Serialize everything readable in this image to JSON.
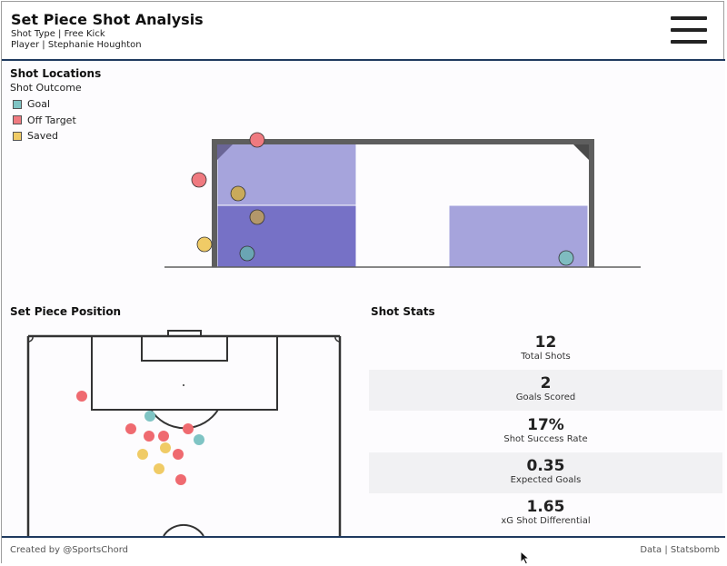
{
  "header": {
    "title": "Set Piece Shot Analysis",
    "shot_type_line": "Shot Type | Free Kick",
    "player_line": "Player | Stephanie Houghton",
    "menu_icon": "hamburger-menu-icon"
  },
  "shot_locations": {
    "title": "Shot Locations",
    "legend_title": "Shot Outcome",
    "legend": [
      {
        "label": "Goal",
        "color": "#7fc4c4"
      },
      {
        "label": "Off Target",
        "color": "#ef7a80"
      },
      {
        "label": "Saved",
        "color": "#f0cb66"
      }
    ]
  },
  "set_piece_position": {
    "title": "Set Piece Position"
  },
  "shot_stats": {
    "title": "Shot Stats",
    "items": [
      {
        "value": "12",
        "label": "Total Shots"
      },
      {
        "value": "2",
        "label": "Goals Scored"
      },
      {
        "value": "17%",
        "label": "Shot Success Rate"
      },
      {
        "value": "0.35",
        "label": "Expected Goals"
      },
      {
        "value": "1.65",
        "label": "xG Shot Differential"
      }
    ]
  },
  "footer": {
    "left": "Created by @SportsChord",
    "right": "Data | Statsbomb"
  },
  "colors": {
    "goal": "#7fc4c4",
    "off_target": "#ef7a80",
    "saved": "#f0cb66",
    "zone_light": "#a6a4dc",
    "zone_dark": "#7671c6",
    "frame": "#5e5e5e",
    "accent_rule": "#1f3a5f"
  }
}
